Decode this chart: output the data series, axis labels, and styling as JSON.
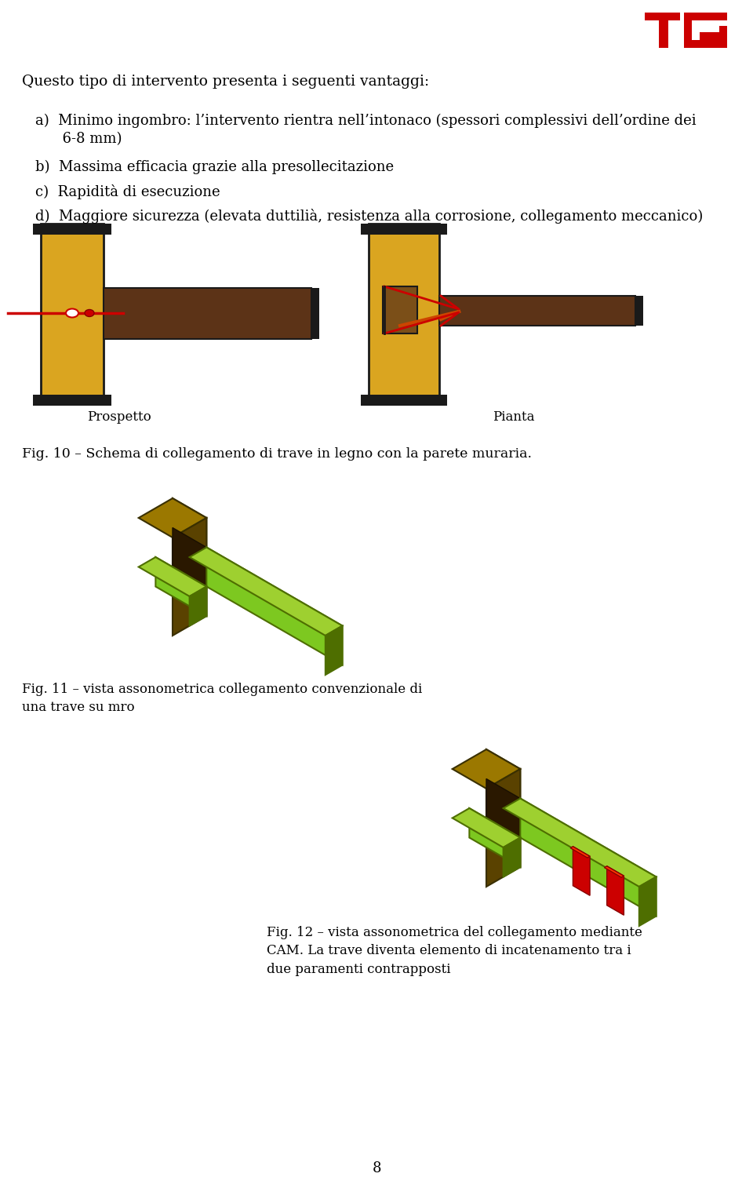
{
  "bg_color": "#ffffff",
  "text_color": "#000000",
  "title_text": "Questo tipo di intervento presenta i seguenti vantaggi:",
  "item_a": "a)  Minimo ingombro: l’intervento rientra nell’intonaco (spessori complessivi dell’ordine dei\n      6-8 mm)",
  "item_b": "b)  Massima efficacia grazie alla presollecitazione",
  "item_c": "c)  Rapidità di esecuzione",
  "item_d": "d)  Maggiore sicurezza (elevata duttilià, resistenza alla corrosione, collegamento meccanico)",
  "fig10_caption": "Fig. 10 – Schema di collegamento di trave in legno con la parete muraria.",
  "fig11_caption": "Fig. 11 – vista assonometrica collegamento convenzionale di\nuna trave su mro",
  "fig12_caption": "Fig. 12 – vista assonometrica del collegamento mediante\nCAM. La trave diventa elemento di incatenamento tra i\ndue paramenti contrapposti",
  "label_prospetto": "Prospetto",
  "label_pianta": "Pianta",
  "page_number": "8",
  "wall_gold": "#DAA520",
  "wall_border": "#1a1a1a",
  "beam_brown": "#5C3317",
  "rod_red": "#cc0000",
  "green_light": "#7DC820",
  "green_dark": "#4E6E00",
  "green_top": "#9ED030",
  "brown_dark": "#5C3800",
  "brown_mid": "#7A5000",
  "brown_light": "#9B7000",
  "olive_dark": "#4a3800"
}
